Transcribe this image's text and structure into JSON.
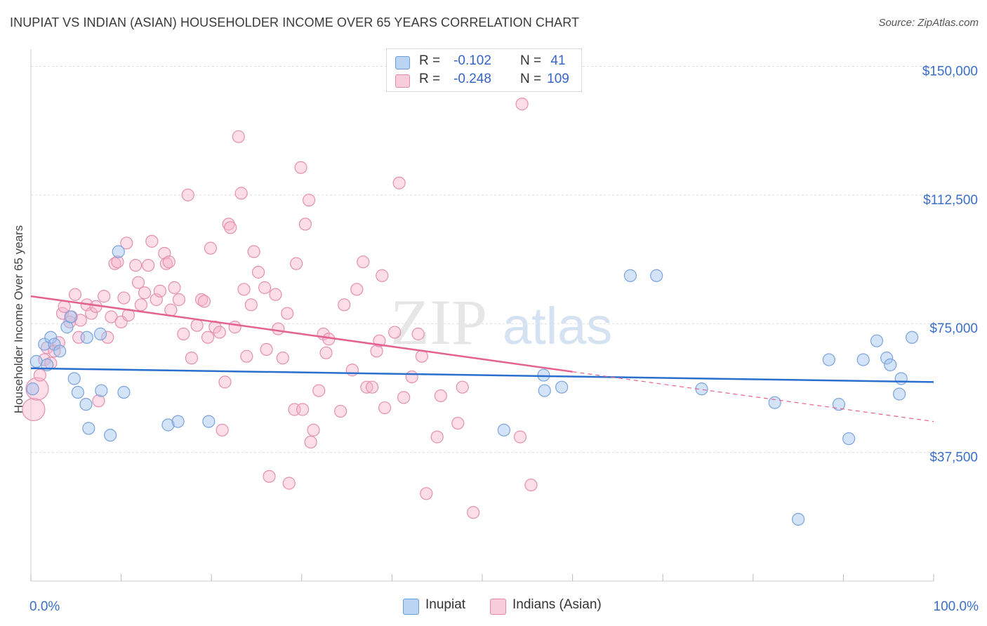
{
  "header": {
    "title": "INUPIAT VS INDIAN (ASIAN) HOUSEHOLDER INCOME OVER 65 YEARS CORRELATION CHART",
    "source": "Source: ZipAtlas.com"
  },
  "watermark": {
    "part1": "ZIP",
    "part2": "atlas"
  },
  "legend": {
    "rows": [
      {
        "r_label": "R =",
        "r_value": "-0.102",
        "n_label": "N =",
        "n_value": "41",
        "color": "#a8c8f0",
        "border": "#6b9bd8"
      },
      {
        "r_label": "R =",
        "r_value": "-0.248",
        "n_label": "N =",
        "n_value": "109",
        "color": "#f8bcd0",
        "border": "#e48aa8"
      }
    ]
  },
  "colors": {
    "inupiat_fill": "rgba(160,195,240,0.45)",
    "inupiat_stroke": "#7aa3dc",
    "inupiat_line": "#2a6fcc",
    "indian_fill": "rgba(248,180,205,0.45)",
    "indian_stroke": "#e490ae",
    "indian_line": "#e4628f",
    "axis_label": "#3a6fc8",
    "grid": "#dddddd"
  },
  "chart_data": {
    "type": "scatter",
    "title": "INUPIAT VS INDIAN (ASIAN) HOUSEHOLDER INCOME OVER 65 YEARS CORRELATION CHART",
    "xlabel": "",
    "ylabel": "Householder Income Over 65 years",
    "xlim": [
      0,
      100
    ],
    "ylim": [
      0,
      155000
    ],
    "x_tick_labels": [
      "0.0%",
      "100.0%"
    ],
    "y_ticks": [
      37500,
      75000,
      112500,
      150000
    ],
    "y_tick_labels": [
      "$37,500",
      "$75,000",
      "$112,500",
      "$150,000"
    ],
    "grid": true,
    "legend_position": "top-center",
    "series": [
      {
        "name": "Inupiat",
        "points": [
          [
            0.2,
            56000
          ],
          [
            0.6,
            64000
          ],
          [
            1.5,
            69000
          ],
          [
            1.8,
            63000
          ],
          [
            2.2,
            71000
          ],
          [
            2.6,
            69000
          ],
          [
            3.2,
            67000
          ],
          [
            4.0,
            74000
          ],
          [
            4.4,
            77000
          ],
          [
            4.8,
            59000
          ],
          [
            5.2,
            55000
          ],
          [
            6.1,
            51500
          ],
          [
            6.4,
            44500
          ],
          [
            6.2,
            71000
          ],
          [
            7.7,
            72000
          ],
          [
            7.8,
            55500
          ],
          [
            8.8,
            42500
          ],
          [
            9.7,
            96000
          ],
          [
            10.3,
            55000
          ],
          [
            15.2,
            45500
          ],
          [
            16.3,
            46500
          ],
          [
            19.7,
            46500
          ],
          [
            52.4,
            44000
          ],
          [
            56.8,
            60000
          ],
          [
            56.9,
            55500
          ],
          [
            58.8,
            56500
          ],
          [
            66.4,
            89000
          ],
          [
            69.3,
            89000
          ],
          [
            74.3,
            56000
          ],
          [
            82.4,
            52000
          ],
          [
            85.0,
            18000
          ],
          [
            88.4,
            64500
          ],
          [
            89.5,
            51500
          ],
          [
            90.6,
            41500
          ],
          [
            92.2,
            64500
          ],
          [
            93.7,
            70000
          ],
          [
            94.8,
            65000
          ],
          [
            95.2,
            63000
          ],
          [
            96.2,
            54500
          ],
          [
            96.4,
            59000
          ],
          [
            97.6,
            71000
          ]
        ],
        "trend": {
          "x": [
            0,
            100
          ],
          "y": [
            62000,
            58000
          ]
        }
      },
      {
        "name": "Indians (Asian)",
        "points": [
          [
            0.3,
            50000
          ],
          [
            0.7,
            56000
          ],
          [
            1.0,
            60000
          ],
          [
            1.5,
            64500
          ],
          [
            1.8,
            68000
          ],
          [
            2.2,
            63500
          ],
          [
            2.6,
            67000
          ],
          [
            3.1,
            69500
          ],
          [
            3.5,
            78000
          ],
          [
            3.7,
            80000
          ],
          [
            4.3,
            75500
          ],
          [
            4.5,
            77000
          ],
          [
            4.9,
            83500
          ],
          [
            5.3,
            71000
          ],
          [
            5.5,
            76000
          ],
          [
            6.2,
            80500
          ],
          [
            6.7,
            78000
          ],
          [
            7.2,
            80000
          ],
          [
            7.5,
            52500
          ],
          [
            8.1,
            83000
          ],
          [
            8.5,
            71000
          ],
          [
            8.9,
            77000
          ],
          [
            9.3,
            92500
          ],
          [
            9.6,
            93000
          ],
          [
            10.0,
            75500
          ],
          [
            10.3,
            82500
          ],
          [
            10.6,
            98500
          ],
          [
            10.8,
            77500
          ],
          [
            11.6,
            92000
          ],
          [
            11.9,
            87000
          ],
          [
            12.2,
            80500
          ],
          [
            12.6,
            84000
          ],
          [
            13.0,
            92000
          ],
          [
            13.4,
            99000
          ],
          [
            13.9,
            82000
          ],
          [
            14.3,
            84500
          ],
          [
            14.8,
            95500
          ],
          [
            15.0,
            92500
          ],
          [
            15.3,
            93000
          ],
          [
            15.5,
            79000
          ],
          [
            15.9,
            85500
          ],
          [
            16.4,
            82000
          ],
          [
            16.9,
            72000
          ],
          [
            17.4,
            112500
          ],
          [
            17.8,
            65000
          ],
          [
            18.4,
            74500
          ],
          [
            18.9,
            82000
          ],
          [
            19.2,
            81500
          ],
          [
            19.6,
            71000
          ],
          [
            19.9,
            97000
          ],
          [
            20.4,
            74000
          ],
          [
            20.9,
            72500
          ],
          [
            21.2,
            44000
          ],
          [
            21.5,
            58000
          ],
          [
            21.9,
            104000
          ],
          [
            22.1,
            103000
          ],
          [
            22.6,
            74000
          ],
          [
            23.0,
            129500
          ],
          [
            23.3,
            113000
          ],
          [
            23.6,
            85000
          ],
          [
            23.9,
            65500
          ],
          [
            24.4,
            80500
          ],
          [
            24.7,
            96000
          ],
          [
            25.2,
            90000
          ],
          [
            25.9,
            85500
          ],
          [
            26.1,
            67500
          ],
          [
            26.4,
            30500
          ],
          [
            27.1,
            83500
          ],
          [
            27.4,
            73500
          ],
          [
            27.9,
            65000
          ],
          [
            28.4,
            78000
          ],
          [
            28.6,
            28500
          ],
          [
            29.2,
            50000
          ],
          [
            29.4,
            92500
          ],
          [
            29.9,
            120500
          ],
          [
            30.1,
            50000
          ],
          [
            30.4,
            104000
          ],
          [
            30.8,
            111000
          ],
          [
            31.0,
            40500
          ],
          [
            31.3,
            44000
          ],
          [
            31.9,
            55500
          ],
          [
            32.4,
            72000
          ],
          [
            32.7,
            66500
          ],
          [
            33.0,
            70500
          ],
          [
            34.3,
            49500
          ],
          [
            34.7,
            80500
          ],
          [
            35.6,
            61500
          ],
          [
            36.1,
            85000
          ],
          [
            36.8,
            93000
          ],
          [
            37.2,
            56500
          ],
          [
            37.8,
            56500
          ],
          [
            38.3,
            67000
          ],
          [
            38.6,
            70000
          ],
          [
            38.9,
            89000
          ],
          [
            39.2,
            50500
          ],
          [
            40.3,
            72500
          ],
          [
            40.8,
            116000
          ],
          [
            41.3,
            53500
          ],
          [
            42.2,
            59500
          ],
          [
            42.9,
            72000
          ],
          [
            43.3,
            65500
          ],
          [
            43.8,
            25500
          ],
          [
            45.0,
            42000
          ],
          [
            45.4,
            54000
          ],
          [
            47.3,
            46000
          ],
          [
            47.8,
            56500
          ],
          [
            49.0,
            20000
          ],
          [
            54.2,
            42000
          ],
          [
            54.4,
            139000
          ],
          [
            55.4,
            28000
          ]
        ],
        "trend": {
          "x": [
            0,
            60
          ],
          "y": [
            83000,
            61000
          ]
        },
        "trend_dashed": {
          "x": [
            60,
            100
          ],
          "y": [
            61000,
            46500
          ]
        }
      }
    ]
  },
  "bottom_legend": [
    {
      "label": "Inupiat"
    },
    {
      "label": "Indians (Asian)"
    }
  ]
}
